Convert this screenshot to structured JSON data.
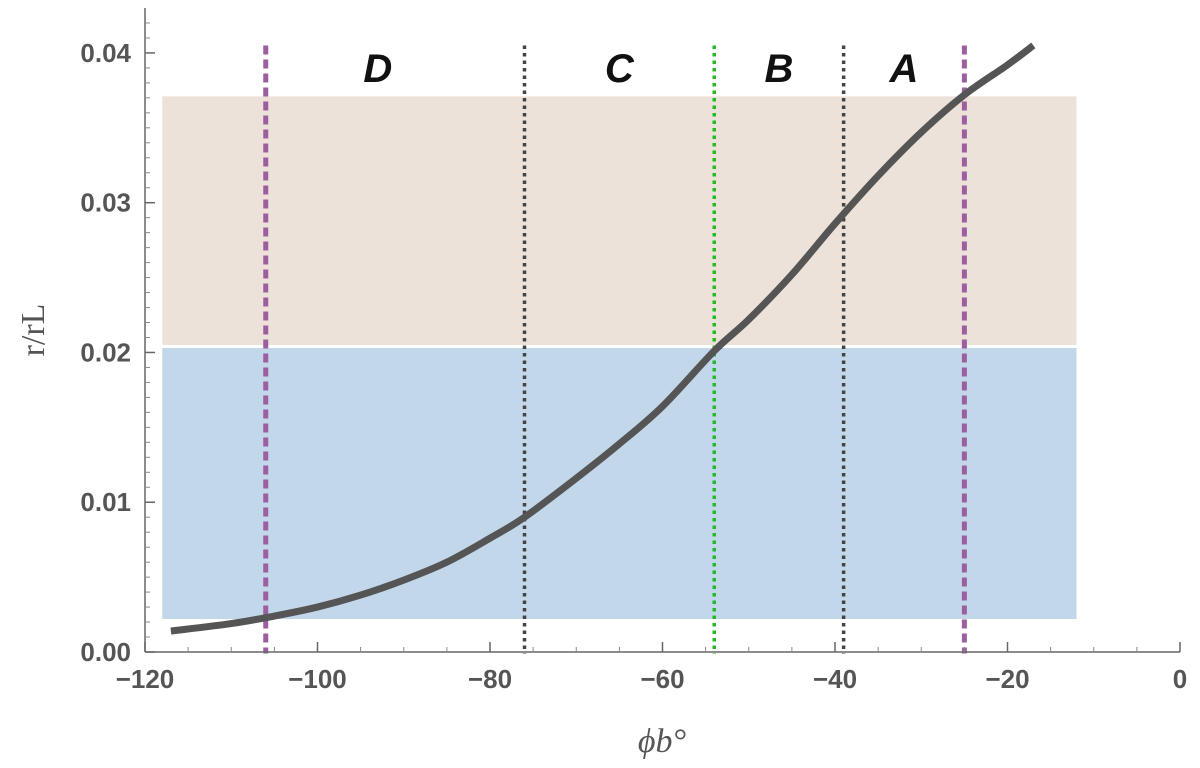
{
  "chart_data": {
    "type": "line",
    "title": "",
    "xlabel": "ϕb°",
    "ylabel": "r/rL",
    "xlim": [
      -120,
      0
    ],
    "ylim": [
      0,
      0.043
    ],
    "x_ticks": [
      -120,
      -100,
      -80,
      -60,
      -40,
      -20,
      0
    ],
    "x_tick_labels": [
      "−120",
      "−100",
      "−80",
      "−60",
      "−40",
      "−20",
      "0"
    ],
    "y_ticks": [
      0,
      0.01,
      0.02,
      0.03,
      0.04
    ],
    "y_tick_labels": [
      "0.00",
      "0.01",
      "0.02",
      "0.03",
      "0.04"
    ],
    "grid": false,
    "series": [
      {
        "color": "#555555",
        "x": [
          -117,
          -110,
          -105,
          -100,
          -95,
          -90,
          -85,
          -80,
          -76,
          -70,
          -65,
          -60,
          -54,
          -50,
          -45,
          -40,
          -35,
          -30,
          -25,
          -20,
          -17
        ],
        "y": [
          0.0014,
          0.0019,
          0.0024,
          0.003,
          0.0038,
          0.0048,
          0.006,
          0.0076,
          0.009,
          0.0116,
          0.0139,
          0.0164,
          0.0201,
          0.0222,
          0.0252,
          0.0286,
          0.0318,
          0.0347,
          0.0372,
          0.0392,
          0.0405
        ]
      }
    ],
    "bands": [
      {
        "y_from": 0.0022,
        "y_to": 0.0203,
        "x_from": -118,
        "x_to": -12,
        "color": "#c2d7ea"
      },
      {
        "y_from": 0.0205,
        "y_to": 0.0371,
        "x_from": -118,
        "x_to": -12,
        "color": "#ece2d9"
      }
    ],
    "vlines": [
      {
        "x": -106,
        "color": "#9b5fa0",
        "style": "dashed"
      },
      {
        "x": -76,
        "color": "#444444",
        "style": "dotted"
      },
      {
        "x": -54,
        "color": "#22bb22",
        "style": "dotted"
      },
      {
        "x": -39,
        "color": "#444444",
        "style": "dotted"
      },
      {
        "x": -25,
        "color": "#9b5fa0",
        "style": "dashed"
      }
    ],
    "region_labels": [
      {
        "text": "D",
        "x": -93
      },
      {
        "text": "C",
        "x": -65
      },
      {
        "text": "B",
        "x": -46.5
      },
      {
        "text": "A",
        "x": -32
      }
    ]
  }
}
